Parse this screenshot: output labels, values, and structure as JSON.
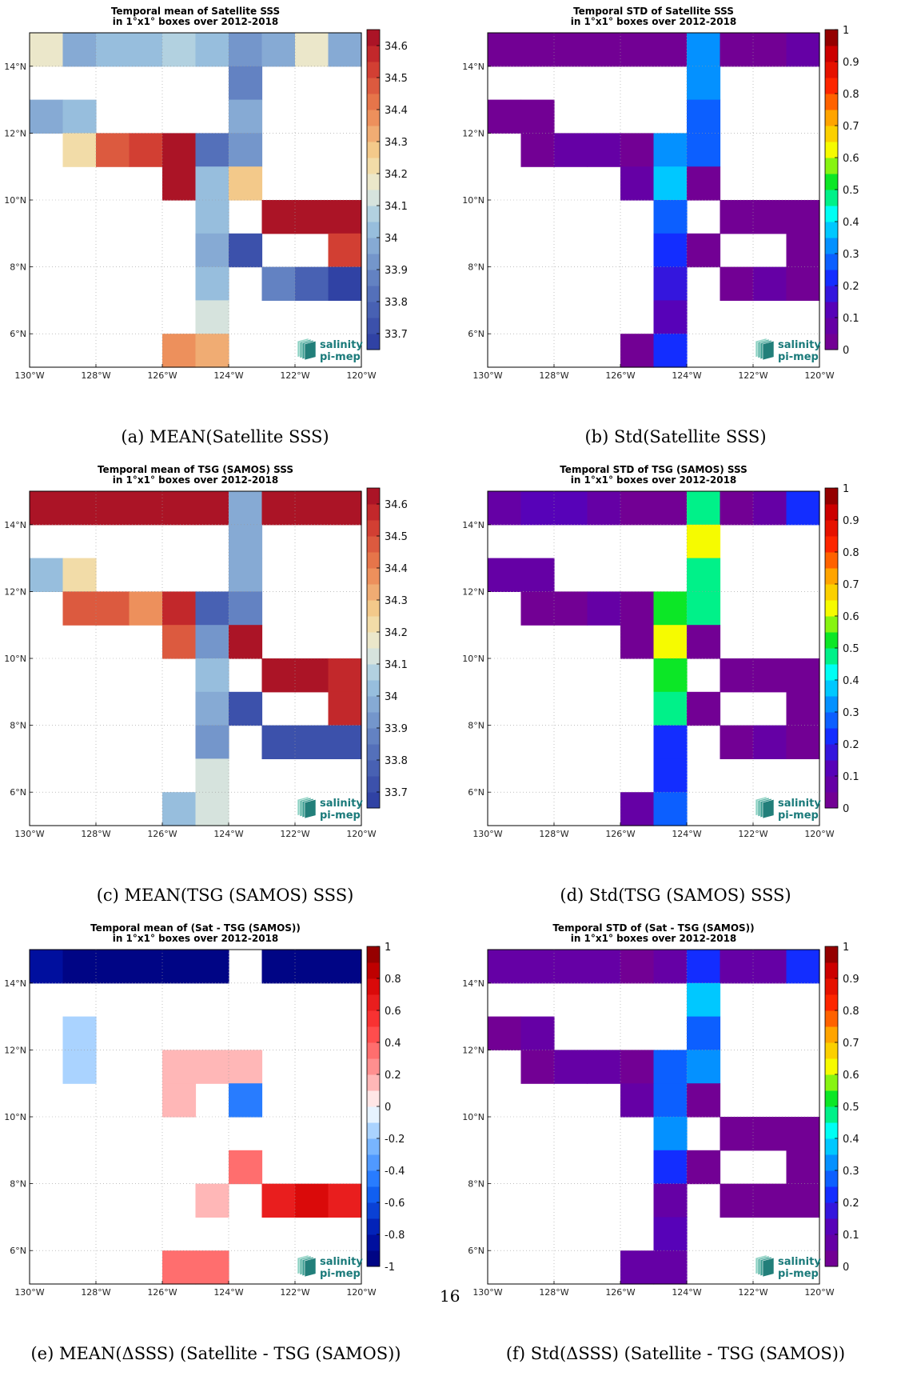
{
  "page_number": "16",
  "logo": {
    "line1": "salinity",
    "line2": "pi-mep",
    "color": "#1a7a7a"
  },
  "chart_data": [
    {
      "id": "a",
      "type": "heatmap",
      "title": [
        "Temporal mean of Satellite SSS",
        "in 1°x1° boxes over 2012-2018"
      ],
      "caption": "(a) MEAN(Satellite SSS)",
      "xlim": [
        -130,
        -120
      ],
      "ylim": [
        5,
        15
      ],
      "xticks": [
        "130°W",
        "128°W",
        "126°W",
        "124°W",
        "122°W",
        "120°W"
      ],
      "yticks": [
        "6°N",
        "8°N",
        "10°N",
        "12°N",
        "14°N"
      ],
      "colorbar": {
        "min": 33.65,
        "max": 34.65,
        "ticks": [
          "33.7",
          "33.8",
          "33.9",
          "34",
          "34.1",
          "34.2",
          "34.3",
          "34.4",
          "34.5",
          "34.6"
        ],
        "ramp": "salinity",
        "segments": 20
      },
      "cells": [
        [
          -130,
          14,
          34.15
        ],
        [
          -129,
          14,
          33.98
        ],
        [
          -128,
          14,
          34.05
        ],
        [
          -127,
          14,
          34.05
        ],
        [
          -126,
          14,
          34.08
        ],
        [
          -125,
          14,
          34.04
        ],
        [
          -124,
          14,
          33.9
        ],
        [
          -123,
          14,
          33.98
        ],
        [
          -122,
          14,
          34.15
        ],
        [
          -121,
          14,
          33.95
        ],
        [
          -124,
          13,
          33.88
        ],
        [
          -130,
          12,
          33.98
        ],
        [
          -129,
          12,
          34.05
        ],
        [
          -124,
          12,
          33.95
        ],
        [
          -129,
          11,
          34.22
        ],
        [
          -128,
          11,
          34.45
        ],
        [
          -127,
          11,
          34.5
        ],
        [
          -126,
          11,
          34.62
        ],
        [
          -125,
          11,
          33.84
        ],
        [
          -124,
          11,
          33.92
        ],
        [
          -126,
          10,
          34.62
        ],
        [
          -125,
          10,
          34.0
        ],
        [
          -124,
          10,
          34.25
        ],
        [
          -125,
          9,
          34.05
        ],
        [
          -123,
          9,
          34.62
        ],
        [
          -122,
          9,
          34.62
        ],
        [
          -121,
          9,
          34.62
        ],
        [
          -125,
          8,
          33.97
        ],
        [
          -124,
          8,
          33.7
        ],
        [
          -121,
          8,
          34.55
        ],
        [
          -125,
          7,
          34.05
        ],
        [
          -123,
          7,
          33.85
        ],
        [
          -122,
          7,
          33.75
        ],
        [
          -121,
          7,
          33.68
        ],
        [
          -125,
          6,
          34.1
        ],
        [
          -126,
          5,
          34.35
        ],
        [
          -125,
          5,
          34.32
        ]
      ]
    },
    {
      "id": "b",
      "type": "heatmap",
      "title": [
        "Temporal STD of Satellite SSS",
        "in 1°x1° boxes over 2012-2018"
      ],
      "caption": "(b) Std(Satellite SSS)",
      "xlim": [
        -130,
        -120
      ],
      "ylim": [
        5,
        15
      ],
      "xticks": [
        "130°W",
        "128°W",
        "126°W",
        "124°W",
        "122°W",
        "120°W"
      ],
      "yticks": [
        "6°N",
        "8°N",
        "10°N",
        "12°N",
        "14°N"
      ],
      "colorbar": {
        "min": 0,
        "max": 1,
        "ticks": [
          "0",
          "0.1",
          "0.2",
          "0.3",
          "0.4",
          "0.5",
          "0.6",
          "0.7",
          "0.8",
          "0.9",
          "1"
        ],
        "ramp": "jet",
        "segments": 20
      },
      "cells": [
        [
          -130,
          14,
          0.03
        ],
        [
          -129,
          14,
          0.03
        ],
        [
          -128,
          14,
          0.03
        ],
        [
          -127,
          14,
          0.03
        ],
        [
          -126,
          14,
          0.03
        ],
        [
          -125,
          14,
          0.03
        ],
        [
          -124,
          14,
          0.33
        ],
        [
          -123,
          14,
          0.03
        ],
        [
          -122,
          14,
          0.03
        ],
        [
          -121,
          14,
          0.08
        ],
        [
          -124,
          13,
          0.33
        ],
        [
          -130,
          12,
          0.03
        ],
        [
          -129,
          12,
          0.03
        ],
        [
          -124,
          12,
          0.27
        ],
        [
          -129,
          11,
          0.03
        ],
        [
          -128,
          11,
          0.08
        ],
        [
          -127,
          11,
          0.08
        ],
        [
          -126,
          11,
          0.03
        ],
        [
          -125,
          11,
          0.33
        ],
        [
          -124,
          11,
          0.27
        ],
        [
          -126,
          10,
          0.08
        ],
        [
          -125,
          10,
          0.38
        ],
        [
          -124,
          10,
          0.03
        ],
        [
          -125,
          9,
          0.27
        ],
        [
          -123,
          9,
          0.03
        ],
        [
          -122,
          9,
          0.03
        ],
        [
          -121,
          9,
          0.03
        ],
        [
          -125,
          8,
          0.22
        ],
        [
          -124,
          8,
          0.03
        ],
        [
          -121,
          8,
          0.03
        ],
        [
          -125,
          7,
          0.18
        ],
        [
          -123,
          7,
          0.03
        ],
        [
          -122,
          7,
          0.08
        ],
        [
          -121,
          7,
          0.03
        ],
        [
          -125,
          6,
          0.13
        ],
        [
          -126,
          5,
          0.03
        ],
        [
          -125,
          5,
          0.22
        ]
      ]
    },
    {
      "id": "c",
      "type": "heatmap",
      "title": [
        "Temporal mean of TSG (SAMOS) SSS",
        "in 1°x1° boxes over 2012-2018"
      ],
      "caption": "(c) MEAN(TSG (SAMOS) SSS)",
      "xlim": [
        -130,
        -120
      ],
      "ylim": [
        5,
        15
      ],
      "xticks": [
        "130°W",
        "128°W",
        "126°W",
        "124°W",
        "122°W",
        "120°W"
      ],
      "yticks": [
        "6°N",
        "8°N",
        "10°N",
        "12°N",
        "14°N"
      ],
      "colorbar": {
        "min": 33.65,
        "max": 34.65,
        "ticks": [
          "33.7",
          "33.8",
          "33.9",
          "34",
          "34.1",
          "34.2",
          "34.3",
          "34.4",
          "34.5",
          "34.6"
        ],
        "ramp": "salinity",
        "segments": 20
      },
      "cells": [
        [
          -130,
          14,
          34.62
        ],
        [
          -129,
          14,
          34.62
        ],
        [
          -128,
          14,
          34.62
        ],
        [
          -127,
          14,
          34.62
        ],
        [
          -126,
          14,
          34.62
        ],
        [
          -125,
          14,
          34.62
        ],
        [
          -124,
          14,
          33.95
        ],
        [
          -123,
          14,
          34.62
        ],
        [
          -122,
          14,
          34.62
        ],
        [
          -121,
          14,
          34.62
        ],
        [
          -124,
          13,
          33.95
        ],
        [
          -130,
          12,
          34.05
        ],
        [
          -129,
          12,
          34.22
        ],
        [
          -124,
          12,
          33.95
        ],
        [
          -129,
          11,
          34.45
        ],
        [
          -128,
          11,
          34.45
        ],
        [
          -127,
          11,
          34.38
        ],
        [
          -126,
          11,
          34.57
        ],
        [
          -125,
          11,
          33.78
        ],
        [
          -124,
          11,
          33.85
        ],
        [
          -126,
          10,
          34.45
        ],
        [
          -125,
          10,
          33.92
        ],
        [
          -124,
          10,
          34.62
        ],
        [
          -125,
          9,
          34.0
        ],
        [
          -123,
          9,
          34.62
        ],
        [
          -122,
          9,
          34.62
        ],
        [
          -121,
          9,
          34.57
        ],
        [
          -125,
          8,
          33.97
        ],
        [
          -124,
          8,
          33.7
        ],
        [
          -121,
          8,
          34.57
        ],
        [
          -125,
          7,
          33.9
        ],
        [
          -123,
          7,
          33.72
        ],
        [
          -122,
          7,
          33.72
        ],
        [
          -121,
          7,
          33.72
        ],
        [
          -125,
          6,
          34.1
        ],
        [
          -126,
          5,
          34.05
        ],
        [
          -125,
          5,
          34.1
        ]
      ]
    },
    {
      "id": "d",
      "type": "heatmap",
      "title": [
        "Temporal STD of TSG (SAMOS) SSS",
        "in 1°x1° boxes over 2012-2018"
      ],
      "caption": "(d) Std(TSG (SAMOS) SSS)",
      "xlim": [
        -130,
        -120
      ],
      "ylim": [
        5,
        15
      ],
      "xticks": [
        "130°W",
        "128°W",
        "126°W",
        "124°W",
        "122°W",
        "120°W"
      ],
      "yticks": [
        "6°N",
        "8°N",
        "10°N",
        "12°N",
        "14°N"
      ],
      "colorbar": {
        "min": 0,
        "max": 1,
        "ticks": [
          "0",
          "0.1",
          "0.2",
          "0.3",
          "0.4",
          "0.5",
          "0.6",
          "0.7",
          "0.8",
          "0.9",
          "1"
        ],
        "ramp": "jet",
        "segments": 20
      },
      "cells": [
        [
          -130,
          14,
          0.08
        ],
        [
          -129,
          14,
          0.13
        ],
        [
          -128,
          14,
          0.13
        ],
        [
          -127,
          14,
          0.08
        ],
        [
          -126,
          14,
          0.03
        ],
        [
          -125,
          14,
          0.03
        ],
        [
          -124,
          14,
          0.48
        ],
        [
          -123,
          14,
          0.03
        ],
        [
          -122,
          14,
          0.08
        ],
        [
          -121,
          14,
          0.22
        ],
        [
          -124,
          13,
          0.62
        ],
        [
          -130,
          12,
          0.08
        ],
        [
          -129,
          12,
          0.08
        ],
        [
          -124,
          12,
          0.48
        ],
        [
          -129,
          11,
          0.03
        ],
        [
          -128,
          11,
          0.03
        ],
        [
          -127,
          11,
          0.08
        ],
        [
          -126,
          11,
          0.03
        ],
        [
          -125,
          11,
          0.53
        ],
        [
          -124,
          11,
          0.48
        ],
        [
          -126,
          10,
          0.03
        ],
        [
          -125,
          10,
          0.62
        ],
        [
          -124,
          10,
          0.03
        ],
        [
          -125,
          9,
          0.53
        ],
        [
          -123,
          9,
          0.03
        ],
        [
          -122,
          9,
          0.03
        ],
        [
          -121,
          9,
          0.03
        ],
        [
          -125,
          8,
          0.48
        ],
        [
          -124,
          8,
          0.03
        ],
        [
          -121,
          8,
          0.03
        ],
        [
          -125,
          7,
          0.22
        ],
        [
          -123,
          7,
          0.03
        ],
        [
          -122,
          7,
          0.08
        ],
        [
          -121,
          7,
          0.03
        ],
        [
          -125,
          6,
          0.22
        ],
        [
          -126,
          5,
          0.08
        ],
        [
          -125,
          5,
          0.27
        ]
      ]
    },
    {
      "id": "e",
      "type": "heatmap",
      "title": [
        "Temporal mean of (Sat - TSG (SAMOS))",
        "in 1°x1° boxes over 2012-2018"
      ],
      "caption": "(e) MEAN(ΔSSS) (Satellite - TSG (SAMOS))",
      "xlim": [
        -130,
        -120
      ],
      "ylim": [
        5,
        15
      ],
      "xticks": [
        "130°W",
        "128°W",
        "126°W",
        "124°W",
        "122°W",
        "120°W"
      ],
      "yticks": [
        "6°N",
        "8°N",
        "10°N",
        "12°N",
        "14°N"
      ],
      "colorbar": {
        "min": -1,
        "max": 1,
        "ticks": [
          "-1",
          "-0.8",
          "-0.6",
          "-0.4",
          "-0.2",
          "0",
          "0.2",
          "0.4",
          "0.6",
          "0.8",
          "1"
        ],
        "ramp": "diverging",
        "segments": 20
      },
      "cells": [
        [
          -130,
          14,
          -0.8
        ],
        [
          -129,
          14,
          -0.9
        ],
        [
          -128,
          14,
          -0.97
        ],
        [
          -127,
          14,
          -0.97
        ],
        [
          -126,
          14,
          -0.97
        ],
        [
          -125,
          14,
          -0.97
        ],
        [
          -123,
          14,
          -0.97
        ],
        [
          -122,
          14,
          -0.97
        ],
        [
          -121,
          14,
          -0.97
        ],
        [
          -129,
          12,
          -0.15
        ],
        [
          -129,
          11,
          -0.15
        ],
        [
          -126,
          11,
          0.15
        ],
        [
          -125,
          11,
          0.15
        ],
        [
          -124,
          11,
          0.15
        ],
        [
          -126,
          10,
          0.15
        ],
        [
          -124,
          10,
          -0.5
        ],
        [
          -124,
          8,
          0.35
        ],
        [
          -125,
          7,
          0.15
        ],
        [
          -123,
          7,
          0.65
        ],
        [
          -122,
          7,
          0.75
        ],
        [
          -121,
          7,
          0.65
        ],
        [
          -126,
          5,
          0.35
        ],
        [
          -125,
          5,
          0.35
        ]
      ]
    },
    {
      "id": "f",
      "type": "heatmap",
      "title": [
        "Temporal STD of (Sat - TSG (SAMOS))",
        "in 1°x1° boxes over 2012-2018"
      ],
      "caption": "(f) Std(ΔSSS) (Satellite - TSG (SAMOS))",
      "xlim": [
        -130,
        -120
      ],
      "ylim": [
        5,
        15
      ],
      "xticks": [
        "130°W",
        "128°W",
        "126°W",
        "124°W",
        "122°W",
        "120°W"
      ],
      "yticks": [
        "6°N",
        "8°N",
        "10°N",
        "12°N",
        "14°N"
      ],
      "colorbar": {
        "min": 0,
        "max": 1,
        "ticks": [
          "0",
          "0.1",
          "0.2",
          "0.3",
          "0.4",
          "0.5",
          "0.6",
          "0.7",
          "0.8",
          "0.9",
          "1"
        ],
        "ramp": "jet",
        "segments": 20
      },
      "cells": [
        [
          -130,
          14,
          0.08
        ],
        [
          -129,
          14,
          0.08
        ],
        [
          -128,
          14,
          0.08
        ],
        [
          -127,
          14,
          0.08
        ],
        [
          -126,
          14,
          0.03
        ],
        [
          -125,
          14,
          0.08
        ],
        [
          -124,
          14,
          0.22
        ],
        [
          -123,
          14,
          0.08
        ],
        [
          -122,
          14,
          0.08
        ],
        [
          -121,
          14,
          0.22
        ],
        [
          -124,
          13,
          0.38
        ],
        [
          -130,
          12,
          0.03
        ],
        [
          -129,
          12,
          0.08
        ],
        [
          -124,
          12,
          0.27
        ],
        [
          -129,
          11,
          0.03
        ],
        [
          -128,
          11,
          0.08
        ],
        [
          -127,
          11,
          0.08
        ],
        [
          -126,
          11,
          0.03
        ],
        [
          -125,
          11,
          0.27
        ],
        [
          -124,
          11,
          0.33
        ],
        [
          -126,
          10,
          0.08
        ],
        [
          -125,
          10,
          0.27
        ],
        [
          -124,
          10,
          0.03
        ],
        [
          -125,
          9,
          0.33
        ],
        [
          -123,
          9,
          0.03
        ],
        [
          -122,
          9,
          0.03
        ],
        [
          -121,
          9,
          0.03
        ],
        [
          -125,
          8,
          0.22
        ],
        [
          -124,
          8,
          0.03
        ],
        [
          -121,
          8,
          0.03
        ],
        [
          -125,
          7,
          0.08
        ],
        [
          -123,
          7,
          0.03
        ],
        [
          -122,
          7,
          0.03
        ],
        [
          -121,
          7,
          0.03
        ],
        [
          -125,
          6,
          0.13
        ],
        [
          -126,
          5,
          0.08
        ],
        [
          -125,
          5,
          0.08
        ]
      ]
    }
  ]
}
